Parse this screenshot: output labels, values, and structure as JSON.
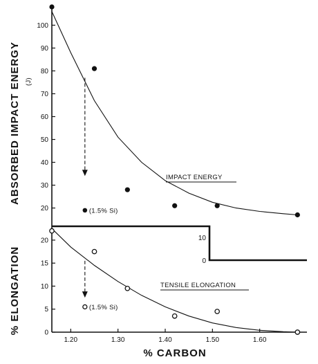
{
  "chart_data": [
    {
      "type": "scatter",
      "ylabel": "ABSORBED IMPACT ENERGY",
      "yunit": "(J)",
      "xlim": [
        1.16,
        1.7
      ],
      "ylim": [
        12,
        108
      ],
      "yticks": [
        "20",
        "30",
        "40",
        "50",
        "60",
        "70",
        "80",
        "90",
        "100"
      ],
      "series": [
        {
          "name": "IMPACT ENERGY",
          "points": [
            {
              "x": 1.16,
              "y": 108
            },
            {
              "x": 1.25,
              "y": 81
            },
            {
              "x": 1.32,
              "y": 28
            },
            {
              "x": 1.42,
              "y": 21
            },
            {
              "x": 1.51,
              "y": 21
            },
            {
              "x": 1.68,
              "y": 17
            }
          ],
          "fit_curve": [
            [
              1.16,
              106
            ],
            [
              1.2,
              88
            ],
            [
              1.25,
              67
            ],
            [
              1.3,
              51
            ],
            [
              1.35,
              40
            ],
            [
              1.4,
              32
            ],
            [
              1.45,
              26.5
            ],
            [
              1.5,
              22.5
            ],
            [
              1.55,
              20
            ],
            [
              1.6,
              18.5
            ],
            [
              1.65,
              17.5
            ],
            [
              1.68,
              17
            ]
          ]
        }
      ],
      "special_point": {
        "x": 1.23,
        "y": 19,
        "label": "(1.5% Si)"
      },
      "arrow": {
        "x": 1.23,
        "from_y": 77,
        "to_y": 34
      },
      "inset_axis": {
        "tick_label": "10",
        "zero_label": "0"
      }
    },
    {
      "type": "scatter",
      "ylabel": "% ELONGATION",
      "xlabel": "% CARBON",
      "xlim": [
        1.16,
        1.7
      ],
      "ylim": [
        0,
        23
      ],
      "xticks": [
        "1.20",
        "1.30",
        "1.40",
        "1.50",
        "1.60"
      ],
      "yticks": [
        "0",
        "5",
        "10",
        "15",
        "20"
      ],
      "series": [
        {
          "name": "TENSILE ELONGATION",
          "points": [
            {
              "x": 1.16,
              "y": 22
            },
            {
              "x": 1.25,
              "y": 17.5
            },
            {
              "x": 1.32,
              "y": 9.5
            },
            {
              "x": 1.42,
              "y": 3.5
            },
            {
              "x": 1.51,
              "y": 4.5
            },
            {
              "x": 1.68,
              "y": 0
            }
          ],
          "fit_curve": [
            [
              1.16,
              22.5
            ],
            [
              1.2,
              18.5
            ],
            [
              1.25,
              14.5
            ],
            [
              1.3,
              11
            ],
            [
              1.35,
              8
            ],
            [
              1.4,
              5.5
            ],
            [
              1.45,
              3.5
            ],
            [
              1.5,
              2
            ],
            [
              1.55,
              1
            ],
            [
              1.6,
              0.4
            ],
            [
              1.65,
              0.1
            ],
            [
              1.68,
              0
            ]
          ]
        }
      ],
      "special_point": {
        "x": 1.23,
        "y": 5.5,
        "label": "(1.5% Si)"
      },
      "arrow": {
        "x": 1.23,
        "from_y": 15.5,
        "to_y": 7.5
      }
    }
  ]
}
